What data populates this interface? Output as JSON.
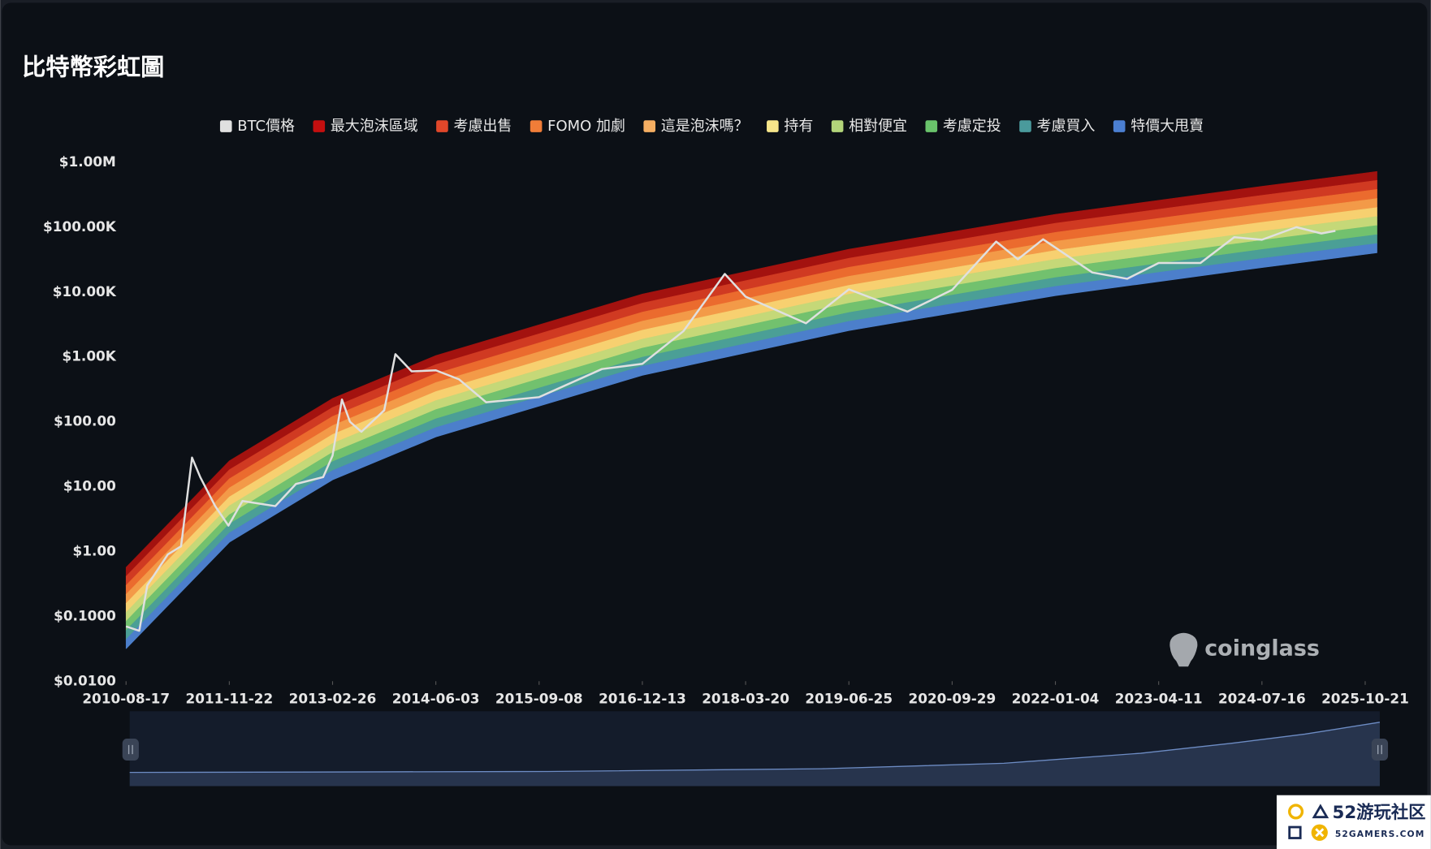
{
  "chart_data": {
    "type": "line",
    "title": "比特幣彩虹圖",
    "log_y": true,
    "legend": "top",
    "xlim": [
      "2010-08-17",
      "2025-12-13"
    ],
    "xticks": [
      "2010-08-17",
      "2011-11-22",
      "2013-02-26",
      "2014-06-03",
      "2015-09-08",
      "2016-12-13",
      "2018-03-20",
      "2019-06-25",
      "2020-09-29",
      "2022-01-04",
      "2023-04-11",
      "2024-07-16",
      "2025-10-21"
    ],
    "ylim": [
      0.01,
      1000000
    ],
    "yticks": [
      {
        "value": 0.01,
        "label": "$0.0100"
      },
      {
        "value": 0.1,
        "label": "$0.1000"
      },
      {
        "value": 1,
        "label": "$1.00"
      },
      {
        "value": 10,
        "label": "$10.00"
      },
      {
        "value": 100,
        "label": "$100.00"
      },
      {
        "value": 1000,
        "label": "$1.00K"
      },
      {
        "value": 10000,
        "label": "$10.00K"
      },
      {
        "value": 100000,
        "label": "$100.00K"
      },
      {
        "value": 1000000,
        "label": "$1.00M"
      }
    ],
    "x": [
      "2010-08-17",
      "2011-11-22",
      "2013-02-26",
      "2014-06-03",
      "2016-12-13",
      "2019-06-25",
      "2022-01-04",
      "2024-07-16",
      "2025-12-13"
    ],
    "series": [
      {
        "name": "BTC價格",
        "color": "#e0e0e0",
        "role": "price",
        "x": [
          "2010-08-17",
          "2010-10-15",
          "2010-11-20",
          "2011-02-20",
          "2011-04-20",
          "2011-06-08",
          "2011-07-15",
          "2011-09-20",
          "2011-11-18",
          "2012-01-20",
          "2012-06-15",
          "2012-09-15",
          "2013-01-15",
          "2013-02-26",
          "2013-04-09",
          "2013-05-15",
          "2013-07-05",
          "2013-10-15",
          "2013-12-04",
          "2014-02-15",
          "2014-06-03",
          "2014-09-15",
          "2015-01-14",
          "2015-09-08",
          "2016-06-15",
          "2016-12-13",
          "2017-06-15",
          "2017-12-17",
          "2018-03-20",
          "2018-12-15",
          "2019-06-25",
          "2020-03-13",
          "2020-09-29",
          "2021-04-14",
          "2021-07-20",
          "2021-11-10",
          "2022-06-18",
          "2022-11-21",
          "2023-04-11",
          "2023-10-15",
          "2024-03-14",
          "2024-07-16",
          "2024-12-17",
          "2025-04-08",
          "2025-06-10"
        ],
        "values": [
          0.07,
          0.06,
          0.3,
          0.9,
          1.2,
          28,
          14,
          5,
          2.5,
          6,
          5,
          11,
          14,
          30,
          220,
          100,
          70,
          150,
          1100,
          600,
          620,
          450,
          200,
          240,
          650,
          780,
          2500,
          19000,
          8500,
          3300,
          11000,
          5000,
          10800,
          60000,
          32000,
          65000,
          20000,
          16000,
          28000,
          28000,
          70000,
          64000,
          100000,
          80000,
          88000
        ]
      },
      {
        "name": "最大泡沫區域",
        "color": "#a3120f",
        "legend_color": "#c40f0f",
        "values": [
          0.57,
          25,
          229,
          1050,
          9330,
          45700,
          158000,
          427000,
          724000
        ]
      },
      {
        "name": "考慮出售",
        "color": "#d03a22",
        "legend_color": "#e0472a",
        "values": [
          0.414,
          18.2,
          166,
          762,
          6770,
          33200,
          115000,
          310000,
          526000
        ]
      },
      {
        "name": "FOMO 加劇",
        "color": "#eb6b2e",
        "legend_color": "#f07d38",
        "values": [
          0.3,
          13.2,
          121,
          553,
          4920,
          24100,
          83300,
          225000,
          382000
        ]
      },
      {
        "name": "這是泡沫嗎？",
        "color": "#f39a48",
        "legend_color": "#f5ae62",
        "values": [
          0.218,
          9.58,
          87.7,
          402,
          3570,
          17500,
          60500,
          164000,
          277000
        ]
      },
      {
        "name": "持有",
        "color": "#f7d070",
        "legend_color": "#f6e58a",
        "values": [
          0.158,
          6.95,
          63.7,
          292,
          2590,
          12700,
          43900,
          119000,
          201000
        ]
      },
      {
        "name": "相對便宜",
        "color": "#c5d878",
        "legend_color": "#b3d57a",
        "values": [
          0.115,
          5.05,
          46.3,
          212,
          1880,
          9230,
          31900,
          86300,
          146000
        ]
      },
      {
        "name": "考慮定投",
        "color": "#72c16e",
        "legend_color": "#69c36b",
        "values": [
          0.0838,
          3.68,
          33.7,
          154,
          1370,
          6720,
          23200,
          62800,
          106000
        ]
      },
      {
        "name": "考慮買入",
        "color": "#4b9f96",
        "legend_color": "#4a9a9c",
        "values": [
          0.0604,
          2.65,
          24.3,
          111,
          989,
          4840,
          16700,
          45300,
          76700
        ]
      },
      {
        "name": "特價大甩賣",
        "color": "#4c7fcb",
        "legend_color": "#4b7fd2",
        "values": [
          0.0441,
          1.93,
          17.7,
          81.2,
          721,
          3530,
          12200,
          33000,
          56000
        ],
        "lower": [
          0.032,
          1.4,
          12.8,
          58.9,
          523,
          2560,
          8860,
          24000,
          40600
        ]
      }
    ]
  },
  "watermarks": {
    "brand": "coinglass",
    "site_name": "52游玩社区",
    "site_url": "52GAMERS.COM"
  }
}
